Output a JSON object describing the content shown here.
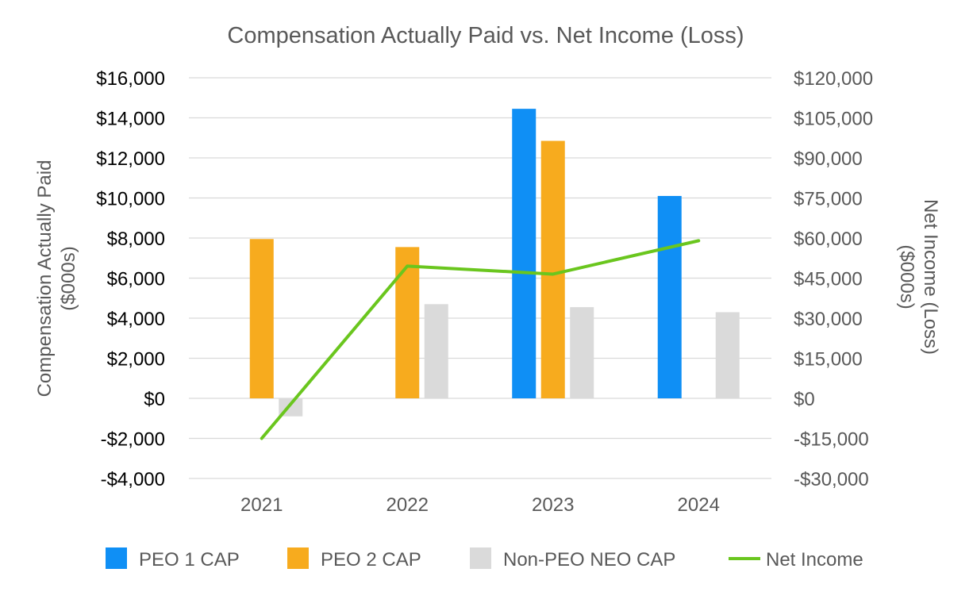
{
  "chart_data": {
    "type": "bar",
    "title": "Compensation Actually Paid vs. Net Income (Loss)",
    "categories": [
      "2021",
      "2022",
      "2023",
      "2024"
    ],
    "ylabel": "Compensation Actually Paid ($000s)",
    "ylabel_lines": [
      "Compensation Actually Paid",
      "($000s)"
    ],
    "y2label": "Net Income (Loss) ($000s)",
    "y2label_lines": [
      "Net Income (Loss)",
      "($000s)"
    ],
    "ylim": [
      -4000,
      16000
    ],
    "y_ticks": [
      16000,
      14000,
      12000,
      10000,
      8000,
      6000,
      4000,
      2000,
      0,
      -2000,
      -4000
    ],
    "y_tick_labels": [
      "$16,000",
      "$14,000",
      "$12,000",
      "$10,000",
      "$8,000",
      "$6,000",
      "$4,000",
      "$2,000",
      "$0",
      "-$2,000",
      "-$4,000"
    ],
    "y2lim": [
      -30000,
      120000
    ],
    "y2_ticks": [
      120000,
      105000,
      90000,
      75000,
      60000,
      45000,
      30000,
      15000,
      0,
      -15000,
      -30000
    ],
    "y2_tick_labels": [
      "$120,000",
      "$105,000",
      "$90,000",
      "$75,000",
      "$60,000",
      "$45,000",
      "$30,000",
      "$15,000",
      "$0",
      "-$15,000",
      "-$30,000"
    ],
    "grid": true,
    "legend_position": "bottom",
    "series": [
      {
        "name": "PEO 1 CAP",
        "type": "bar",
        "axis": "left",
        "color": "#0f8ff5",
        "values": [
          null,
          null,
          14450,
          10100
        ]
      },
      {
        "name": "PEO 2 CAP",
        "type": "bar",
        "axis": "left",
        "color": "#f7ab1e",
        "values": [
          7950,
          7550,
          12850,
          null
        ]
      },
      {
        "name": "Non-PEO NEO CAP",
        "type": "bar",
        "axis": "left",
        "color": "#dadada",
        "values": [
          -900,
          4700,
          4550,
          4300
        ]
      },
      {
        "name": "Net Income",
        "type": "line",
        "axis": "right",
        "color": "#6ac61e",
        "values": [
          -15000,
          49500,
          46500,
          59000
        ]
      }
    ]
  }
}
